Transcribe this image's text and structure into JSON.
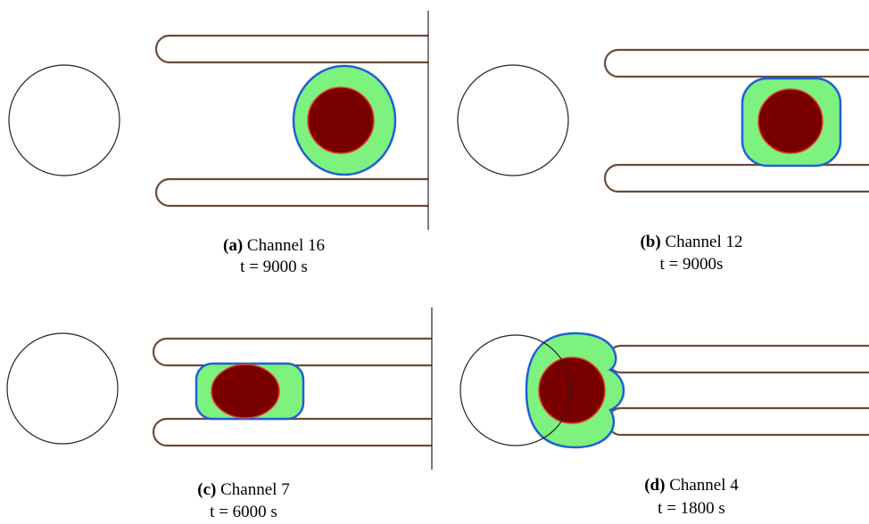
{
  "panels": [
    {
      "label": "(a)",
      "caption": "Channel 16",
      "time": "t = 9000 s"
    },
    {
      "label": "(b)",
      "caption": "Channel 12",
      "time": "t = 9000s"
    },
    {
      "label": "(c)",
      "caption": "Channel 7",
      "time": "t = 6000 s"
    },
    {
      "label": "(d)",
      "caption": "Channel 4",
      "time": "t = 1800 s"
    }
  ]
}
